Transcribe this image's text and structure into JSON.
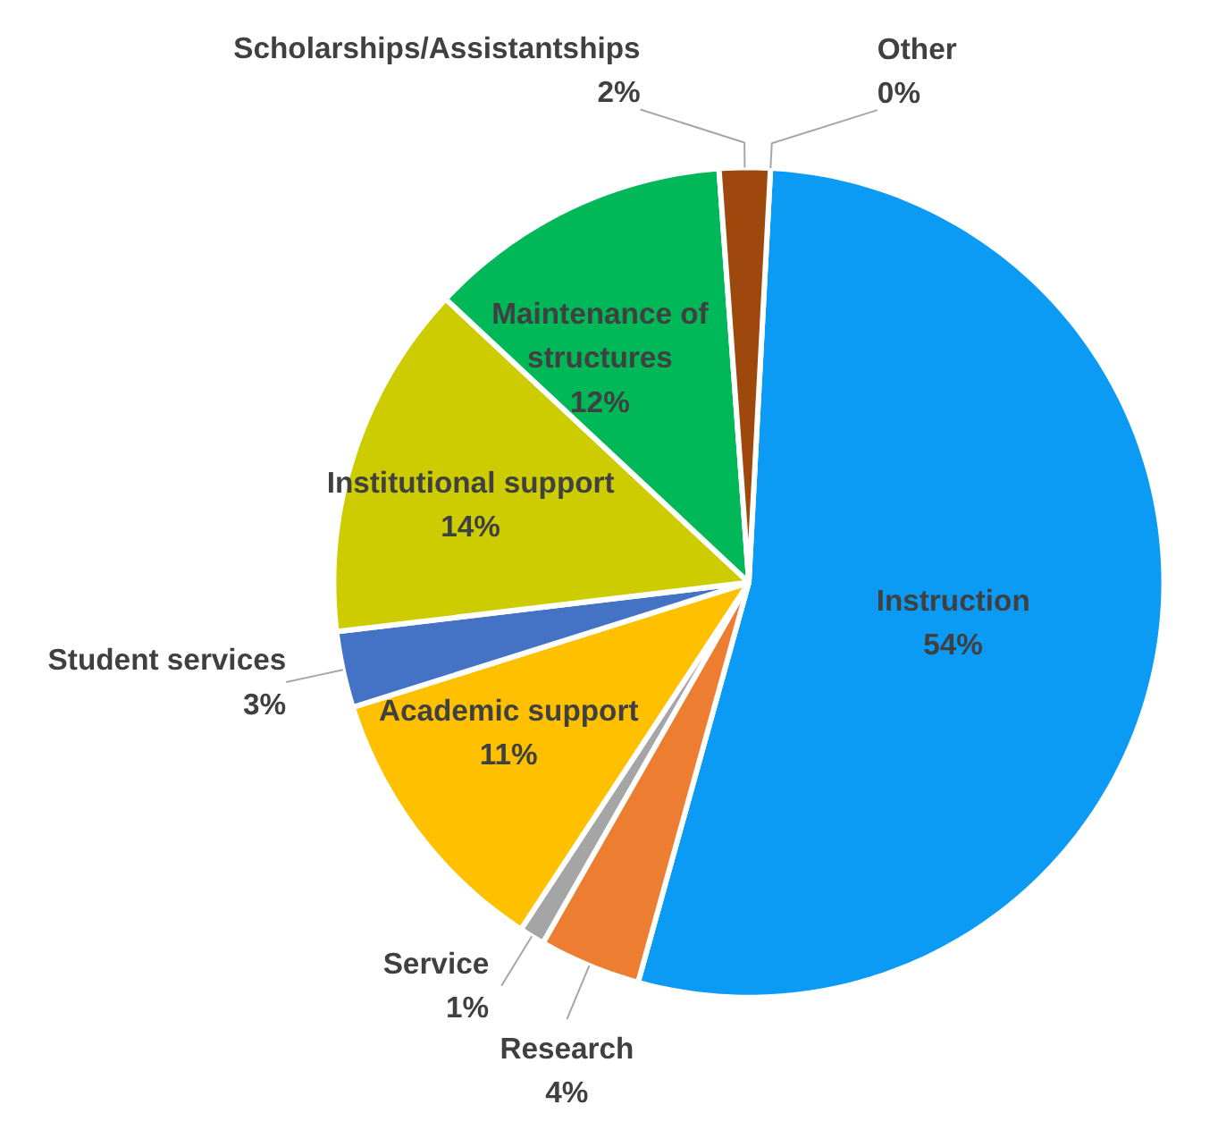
{
  "chart_data": {
    "type": "pie",
    "categories": [
      "Instruction",
      "Research",
      "Service",
      "Academic support",
      "Student services",
      "Institutional support",
      "Maintenance of structures",
      "Scholarships/Assistantships",
      "Other"
    ],
    "values": [
      54,
      4,
      1,
      11,
      3,
      14,
      12,
      2,
      0
    ],
    "value_labels": [
      "54%",
      "4%",
      "1%",
      "11%",
      "3%",
      "14%",
      "12%",
      "2%",
      "0%"
    ],
    "colors": [
      "#0b9bf5",
      "#ed7d31",
      "#a5a5a5",
      "#ffc000",
      "#4472c4",
      "#cccc00",
      "#00b858",
      "#9e480e",
      "#7f7f7f"
    ]
  }
}
